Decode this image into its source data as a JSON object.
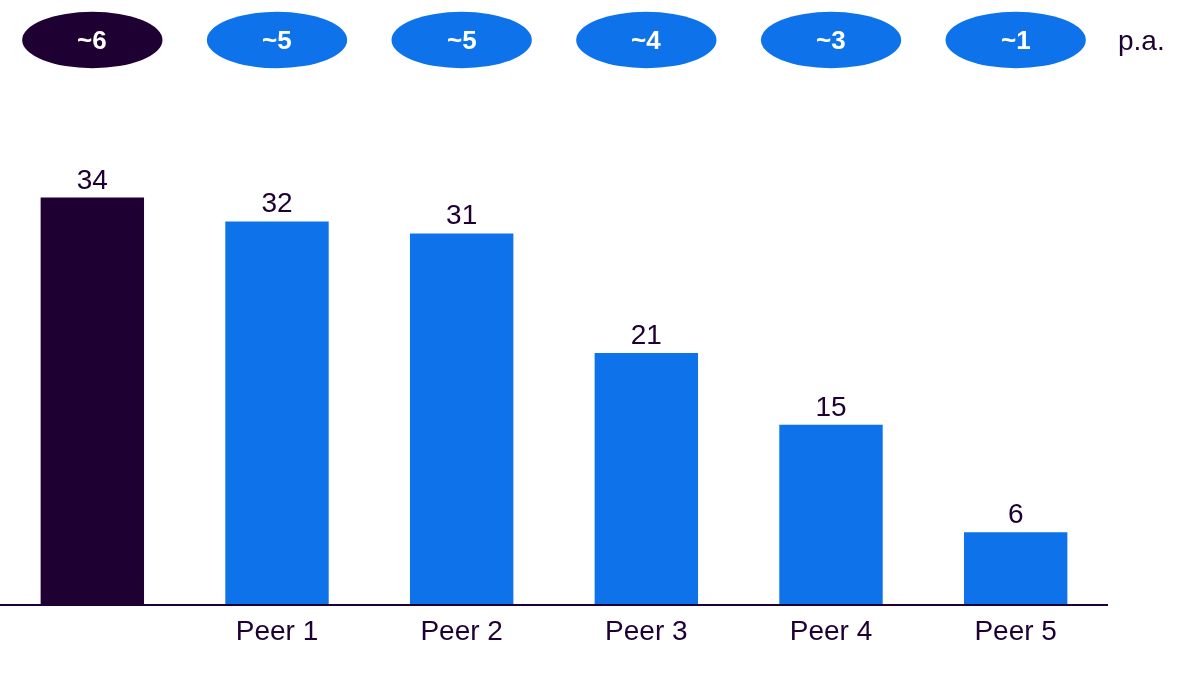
{
  "chart_data": {
    "type": "bar",
    "categories": [
      null,
      "Peer 1",
      "Peer 2",
      "Peer 3",
      "Peer 4",
      "Peer 5"
    ],
    "values": [
      34,
      32,
      31,
      21,
      15,
      6
    ],
    "colors": [
      "#1e0033",
      "#0e72ea",
      "#0e72ea",
      "#0e72ea",
      "#0e72ea",
      "#0e72ea"
    ],
    "data_labels": true,
    "tick_labels": "x",
    "grid": false,
    "annotations": [
      "~6",
      "~5",
      "~5",
      "~4",
      "~3",
      "~1",
      "p.a."
    ]
  }
}
